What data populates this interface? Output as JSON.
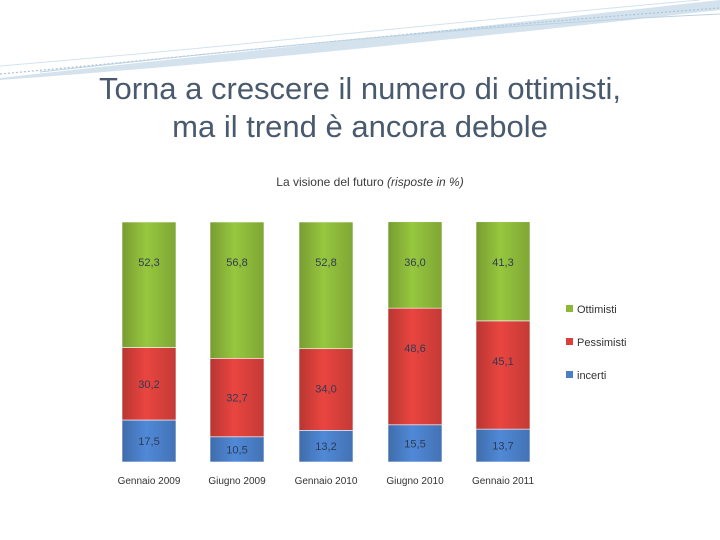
{
  "slide": {
    "title_line1": "Torna a crescere il numero di ottimisti,",
    "title_line2": "ma il trend è ancora debole",
    "subtitle_main": "La visione del futuro",
    "subtitle_note": "(risposte in %)"
  },
  "colors": {
    "ottimisti": "#8cb83a",
    "pessimisti": "#d9403b",
    "incerti": "#4a7fc8",
    "title": "#4a5a6e",
    "decoration": "#a9c4d8"
  },
  "chart_data": {
    "type": "bar",
    "stacked": true,
    "title": "La visione del futuro (risposte in %)",
    "categories": [
      "Gennaio 2009",
      "Giugno 2009",
      "Gennaio 2010",
      "Giugno 2010",
      "Gennaio 2011"
    ],
    "series": [
      {
        "name": "incerti",
        "values": [
          17.5,
          10.5,
          13.2,
          15.5,
          13.7
        ],
        "labels": [
          "17,5",
          "10,5",
          "13,2",
          "15,5",
          "13,7"
        ]
      },
      {
        "name": "Pessimisti",
        "values": [
          30.2,
          32.7,
          34.0,
          48.6,
          45.1
        ],
        "labels": [
          "30,2",
          "32,7",
          "34,0",
          "48,6",
          "45,1"
        ]
      },
      {
        "name": "Ottimisti",
        "values": [
          52.3,
          56.8,
          52.8,
          36.0,
          41.3
        ],
        "labels": [
          "52,3",
          "56,8",
          "52,8",
          "36,0",
          "41,3"
        ]
      }
    ],
    "legend": [
      "Ottimisti",
      "Pessimisti",
      "incerti"
    ],
    "legend_position": "right",
    "ylim": [
      0,
      100
    ],
    "grid": false
  }
}
